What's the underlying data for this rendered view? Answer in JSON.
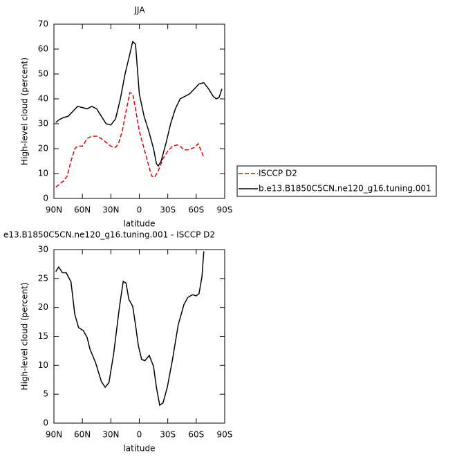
{
  "chart_data": [
    {
      "type": "line",
      "title": "JJA",
      "xlabel": "latitude",
      "ylabel": "High-level cloud (percent)",
      "xlim": [
        90,
        -90
      ],
      "xticks": [
        {
          "value": 90,
          "label": "90N"
        },
        {
          "value": 60,
          "label": "60N"
        },
        {
          "value": 30,
          "label": "30N"
        },
        0,
        {
          "value": -30,
          "label": "30S"
        },
        {
          "value": -60,
          "label": "60S"
        },
        {
          "value": -90,
          "label": "90S"
        }
      ],
      "ylim": [
        0,
        70
      ],
      "yticks": [
        0,
        10,
        20,
        30,
        40,
        50,
        60,
        70
      ],
      "legend": "right",
      "series": [
        {
          "name": "ISCCP D2",
          "color": "#e00000",
          "dashed": true,
          "x": [
            88,
            85,
            80,
            76,
            72,
            68,
            65,
            60,
            55,
            50,
            45,
            40,
            35,
            30,
            25,
            22,
            18,
            14,
            10,
            7,
            4,
            0,
            -5,
            -10,
            -13,
            -16,
            -20,
            -25,
            -30,
            -35,
            -40,
            -43,
            -47,
            -51,
            -55,
            -58,
            -62,
            -68
          ],
          "values": [
            4.5,
            5.5,
            7,
            9,
            15,
            20,
            21,
            21,
            24,
            25,
            25,
            24,
            22.5,
            21,
            20.5,
            22,
            27,
            35,
            42.5,
            42,
            36,
            27,
            20,
            13,
            9,
            8.5,
            11,
            16,
            19,
            21,
            21.5,
            21,
            19.5,
            19.5,
            20,
            20.5,
            22,
            16.5
          ]
        },
        {
          "name": "b.e13.B1850C5CN.ne120_g16.tuning.001",
          "color": "#000000",
          "dashed": false,
          "x": [
            88,
            85,
            80,
            75,
            70,
            65,
            60,
            55,
            50,
            45,
            40,
            35,
            30,
            25,
            20,
            15,
            10,
            7,
            4,
            0,
            -5,
            -10,
            -15,
            -18,
            -20,
            -23,
            -28,
            -33,
            -38,
            -43,
            -48,
            -53,
            -58,
            -63,
            -68,
            -73,
            -78,
            -81,
            -84,
            -87
          ],
          "values": [
            30.5,
            31.5,
            32.5,
            33,
            35,
            37,
            36.5,
            36,
            37,
            36,
            33,
            30,
            29.5,
            32,
            40,
            50,
            58,
            63,
            62,
            42,
            33,
            27,
            20,
            14,
            13,
            15,
            22,
            30,
            36,
            40,
            41,
            42,
            44,
            46,
            46.5,
            44,
            41,
            40,
            40.5,
            44
          ]
        }
      ]
    },
    {
      "type": "line",
      "title": "e13.B1850C5CN.ne120_g16.tuning.001 - ISCCP D2",
      "xlabel": "latitude",
      "ylabel": "High-level cloud (percent)",
      "xlim": [
        90,
        -90
      ],
      "xticks": [
        {
          "value": 90,
          "label": "90N"
        },
        {
          "value": 60,
          "label": "60N"
        },
        {
          "value": 30,
          "label": "30N"
        },
        0,
        {
          "value": -30,
          "label": "30S"
        },
        {
          "value": -60,
          "label": "60S"
        },
        {
          "value": -90,
          "label": "90S"
        }
      ],
      "ylim": [
        0,
        30
      ],
      "yticks": [
        0,
        5,
        10,
        15,
        20,
        25,
        30
      ],
      "series": [
        {
          "color": "#000000",
          "dashed": false,
          "x": [
            88,
            85,
            81,
            77,
            72,
            68,
            64,
            59,
            55,
            52,
            46,
            40,
            36,
            32,
            27,
            21,
            17,
            14,
            11,
            7,
            4,
            1,
            -2.5,
            -6,
            -10.5,
            -15,
            -18,
            -21.5,
            -25,
            -29.5,
            -35,
            -41,
            -47,
            -51,
            -56,
            -60,
            -63,
            -66,
            -68
          ],
          "values": [
            26.2,
            27,
            26,
            26,
            24.4,
            18.8,
            16.5,
            16,
            14.8,
            12.8,
            10.4,
            7.2,
            6.2,
            7,
            12,
            20,
            24.5,
            24.2,
            21.4,
            20.2,
            17,
            13.4,
            11,
            10.8,
            11.7,
            9.8,
            6.2,
            3.1,
            3.5,
            6.2,
            11,
            17,
            20.5,
            21.7,
            22.2,
            22,
            22.4,
            25.3,
            29.7
          ]
        }
      ]
    }
  ]
}
